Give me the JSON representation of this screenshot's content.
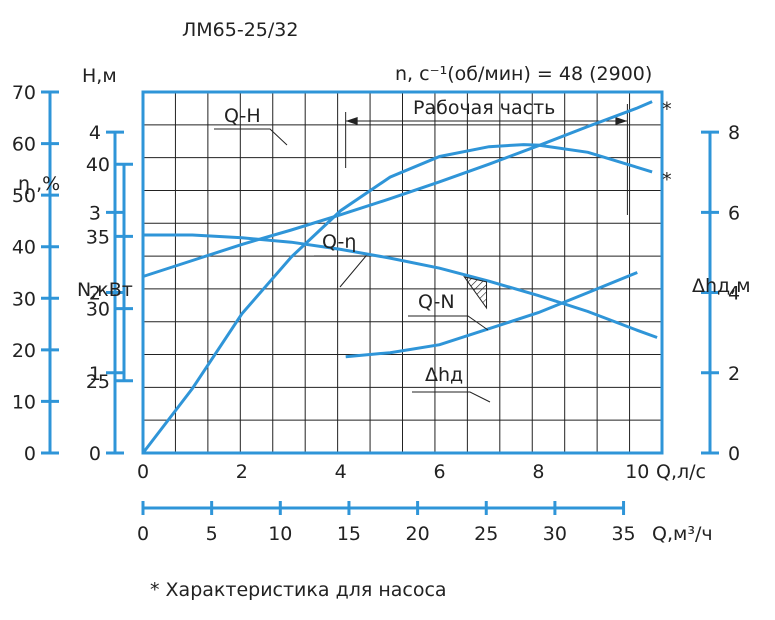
{
  "title": "ЛМ65-25/32",
  "speed_label": "n, с⁻¹(об/мин) = 48 (2900)",
  "work_zone_label": "Рабочая часть",
  "footnote": "* Характеристика для насоса",
  "colors": {
    "curve": "#2f95d8",
    "axis": "#2f95d8",
    "grid": "#222222",
    "hatch": "#222222"
  },
  "chart_data": {
    "type": "line",
    "grid": true,
    "x": {
      "label": "Q,л/с",
      "range": [
        0,
        10.5
      ],
      "ticks": [
        0,
        2,
        4,
        6,
        8,
        10
      ]
    },
    "x2": {
      "label": "Q,м³/ч",
      "range": [
        0,
        37.8
      ],
      "ticks": [
        0,
        5,
        10,
        15,
        20,
        25,
        30,
        35
      ]
    },
    "axes": {
      "H": {
        "label": "Н,м",
        "range": [
          20,
          45
        ],
        "ticks": [
          25,
          30,
          35,
          40
        ]
      },
      "eta": {
        "label": "η ,%",
        "range": [
          0,
          70
        ],
        "ticks": [
          0,
          10,
          20,
          30,
          40,
          50,
          60,
          70
        ]
      },
      "N": {
        "label": "N,кВт",
        "range": [
          0,
          4.5
        ],
        "ticks": [
          0,
          1,
          2,
          3,
          4
        ]
      },
      "dh": {
        "label": "Δhд,м",
        "range": [
          0,
          9
        ],
        "ticks": [
          0,
          2,
          4,
          6,
          8
        ]
      }
    },
    "series": [
      {
        "name": "Q-H",
        "axis": "H",
        "x": [
          0,
          1,
          2,
          3,
          4,
          5,
          6,
          7,
          8,
          9,
          10,
          10.4
        ],
        "y": [
          35.1,
          35.1,
          34.9,
          34.6,
          34.1,
          33.5,
          32.8,
          31.9,
          30.9,
          29.8,
          28.5,
          28.0
        ]
      },
      {
        "name": "Q-η",
        "axis": "eta",
        "x": [
          0,
          1,
          2,
          3,
          4,
          5,
          6,
          7,
          7.7,
          8,
          9,
          10.3
        ],
        "y": [
          0,
          12.5,
          27,
          38,
          47,
          53.5,
          57.5,
          59.4,
          59.8,
          59.7,
          58.3,
          54.5
        ]
      },
      {
        "name": "Q-N",
        "axis": "N",
        "x": [
          0,
          1,
          2,
          3,
          4,
          5,
          6,
          7,
          8,
          9,
          10,
          10.3
        ],
        "y": [
          2.2,
          2.4,
          2.6,
          2.78,
          2.97,
          3.17,
          3.38,
          3.6,
          3.83,
          4.07,
          4.3,
          4.38
        ]
      },
      {
        "name": "Δhд",
        "axis": "dh",
        "x": [
          4.1,
          5,
          6,
          7,
          8,
          9,
          10
        ],
        "y": [
          2.4,
          2.5,
          2.7,
          3.1,
          3.5,
          4.0,
          4.5
        ]
      }
    ],
    "work_zone": {
      "x": [
        4.1,
        9.8
      ]
    },
    "markers": [
      "*",
      "*"
    ]
  }
}
